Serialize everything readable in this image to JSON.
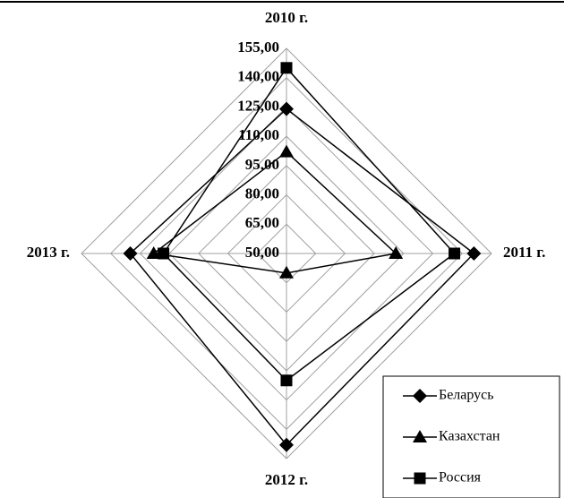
{
  "chart_data": {
    "type": "radar",
    "categories": [
      "2010 г.",
      "2011 г.",
      "2012 г.",
      "2013 г."
    ],
    "series": [
      {
        "name": "Беларусь",
        "color": "#000000",
        "marker": "diamond",
        "values": [
          124,
          146,
          148,
          130
        ]
      },
      {
        "name": "Казахстан",
        "color": "#000000",
        "marker": "triangle",
        "values": [
          102,
          106,
          60,
          118
        ]
      },
      {
        "name": "Россия",
        "color": "#000000",
        "marker": "square",
        "values": [
          145,
          136,
          115,
          113
        ]
      }
    ],
    "rlim": [
      50,
      155
    ],
    "rticks": [
      {
        "value": 50,
        "label": "50,00"
      },
      {
        "value": 65,
        "label": "65,00"
      },
      {
        "value": 80,
        "label": "80,00"
      },
      {
        "value": 95,
        "label": "95,00"
      },
      {
        "value": 110,
        "label": "110,00"
      },
      {
        "value": 125,
        "label": "125,00"
      },
      {
        "value": 140,
        "label": "140,00"
      },
      {
        "value": 155,
        "label": "155,00"
      }
    ],
    "grid": true,
    "legend": "lower right"
  }
}
